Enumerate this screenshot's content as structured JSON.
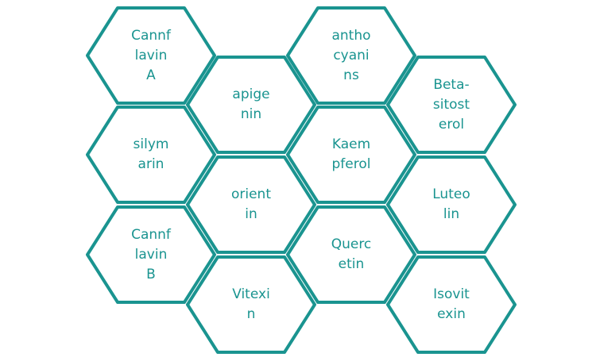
{
  "colors": {
    "stroke": "#1a9490",
    "text": "#1a9490",
    "fill": "#ffffff"
  },
  "hexagons": [
    {
      "label": "Cannf\nlavin\nA"
    },
    {
      "label": "apige\nnin"
    },
    {
      "label": "antho\ncyani\nns"
    },
    {
      "label": "Beta-\nsitost\nerol"
    },
    {
      "label": "silym\narin"
    },
    {
      "label": "Kaem\npferol"
    },
    {
      "label": "orient\nin"
    },
    {
      "label": "Luteo\nlin"
    },
    {
      "label": "Cannf\nlavin\nB"
    },
    {
      "label": "Querc\netin"
    },
    {
      "label": "Vitexi\nn"
    },
    {
      "label": "Isovit\nexin"
    }
  ]
}
